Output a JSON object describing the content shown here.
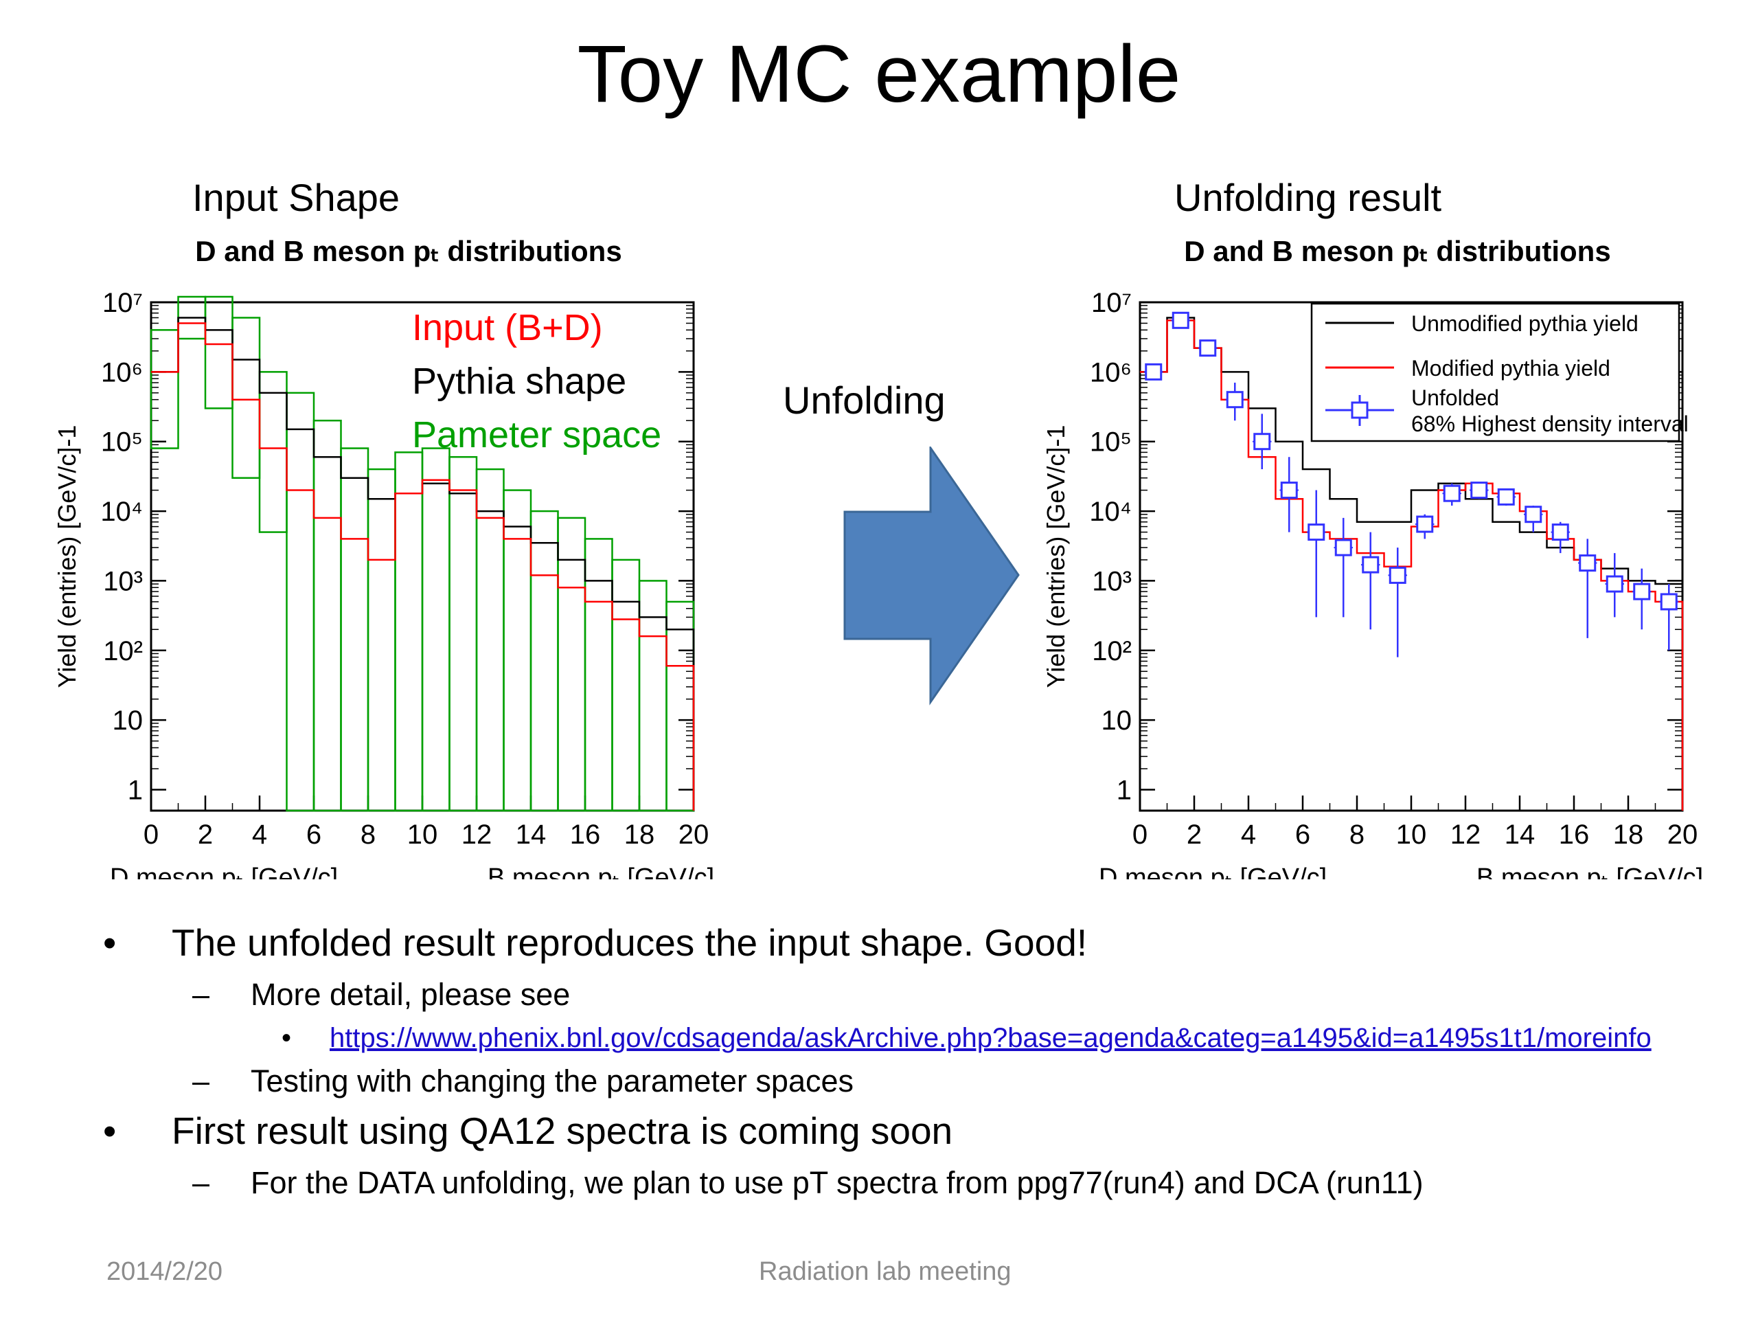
{
  "slide": {
    "title": "Toy MC example",
    "left_caption": "Input Shape",
    "right_caption": "Unfolding result",
    "arrow_label": "Unfolding",
    "arrow_color": "#4f81bd"
  },
  "bullets": [
    {
      "mark": "•",
      "text": "The unfolded result reproduces the input shape. Good!",
      "sub": [
        {
          "mark": "–",
          "text": "More detail, please see",
          "link_mark": "•",
          "link": "https://www.phenix.bnl.gov/cdsagenda/askArchive.php?base=agenda&categ=a1495&id=a1495s1t1/moreinfo"
        },
        {
          "mark": "–",
          "text": "Testing with changing the parameter spaces"
        }
      ]
    },
    {
      "mark": "•",
      "text": "First result using QA12 spectra is coming soon",
      "sub": [
        {
          "mark": "–",
          "text": "For the DATA unfolding, we plan to use pT spectra from ppg77(run4) and DCA (run11)"
        }
      ]
    }
  ],
  "footer": {
    "date": "2014/2/20",
    "center": "Radiation lab meeting"
  },
  "chart_data": [
    {
      "type": "histogram",
      "title": "D and B meson pT distributions",
      "ylabel": "Yield (entries) [GeV/c]-1",
      "xlabel_left": "D meson pT [GeV/c]",
      "xlabel_right": "B meson pT [GeV/c]",
      "xlim": [
        0,
        20
      ],
      "ylim": [
        0.5,
        10000000
      ],
      "log_y": true,
      "x_ticks": [
        "0",
        "2",
        "4",
        "6",
        "8",
        "10",
        "12",
        "14",
        "16",
        "18",
        "20"
      ],
      "y_ticks": [
        "1",
        "10",
        "10²",
        "10³",
        "10⁴",
        "10⁵",
        "10⁶",
        "10⁷"
      ],
      "bin_edges": [
        0,
        1,
        2,
        3,
        4,
        5,
        6,
        7,
        8,
        9,
        10,
        11,
        12,
        13,
        14,
        15,
        16,
        17,
        18,
        19,
        20
      ],
      "legend": [
        "Input (B+D)",
        "Pythia shape",
        "Pameter space"
      ],
      "legend_colors": [
        "#ff0000",
        "#000000",
        "#00a000"
      ],
      "series": [
        {
          "name": "Input (B+D)",
          "color": "#ff0000",
          "values": [
            1000000,
            5000000,
            2500000,
            400000,
            80000,
            20000,
            8000,
            4000,
            2000,
            18000,
            28000,
            20000,
            8000,
            4000,
            1200,
            800,
            500,
            280,
            160,
            60
          ]
        },
        {
          "name": "Pythia shape",
          "color": "#000000",
          "values": [
            1000000,
            6000000,
            4000000,
            1500000,
            500000,
            150000,
            60000,
            30000,
            15000,
            18000,
            25000,
            18000,
            10000,
            6000,
            3500,
            2000,
            1000,
            500,
            300,
            200
          ]
        },
        {
          "name": "Pameter space",
          "color": "#00a000",
          "upper": [
            4000000,
            12000000,
            12000000,
            6000000,
            1000000,
            500000,
            200000,
            80000,
            40000,
            70000,
            80000,
            60000,
            40000,
            20000,
            10000,
            8000,
            4000,
            2000,
            1000,
            500
          ],
          "lower": [
            80000,
            3000000,
            300000,
            30000,
            5000,
            0.5,
            0.5,
            0.5,
            0.5,
            0.5,
            0.5,
            0.5,
            0.5,
            0.5,
            0.5,
            0.5,
            0.5,
            0.5,
            0.5,
            0.5
          ]
        }
      ]
    },
    {
      "type": "histogram",
      "title": "D and B meson pT distributions",
      "ylabel": "Yield (entries) [GeV/c]-1",
      "xlabel_left": "D meson pT [GeV/c]",
      "xlabel_right": "B meson pT [GeV/c]",
      "xlim": [
        0,
        20
      ],
      "ylim": [
        0.5,
        10000000
      ],
      "log_y": true,
      "x_ticks": [
        "0",
        "2",
        "4",
        "6",
        "8",
        "10",
        "12",
        "14",
        "16",
        "18",
        "20"
      ],
      "y_ticks": [
        "1",
        "10",
        "10²",
        "10³",
        "10⁴",
        "10⁵",
        "10⁶",
        "10⁷"
      ],
      "bin_edges": [
        0,
        1,
        2,
        3,
        4,
        5,
        6,
        7,
        8,
        9,
        10,
        11,
        12,
        13,
        14,
        15,
        16,
        17,
        18,
        19,
        20
      ],
      "legend": [
        "Unmodified pythia yield",
        "Modified pythia yield",
        "Unfolded",
        "68% Highest density interval"
      ],
      "series": [
        {
          "name": "Unmodified pythia yield",
          "color": "#000000",
          "values": [
            1000000,
            6000000,
            2200000,
            1000000,
            300000,
            100000,
            40000,
            15000,
            7000,
            7000,
            20000,
            25000,
            15000,
            7000,
            5000,
            3000,
            2000,
            1500,
            1000,
            900
          ]
        },
        {
          "name": "Modified pythia yield",
          "color": "#ff0000",
          "values": [
            1000000,
            5500000,
            2200000,
            400000,
            60000,
            15000,
            5000,
            4000,
            2500,
            1600,
            6000,
            20000,
            25000,
            18000,
            10000,
            4000,
            2000,
            1000,
            700,
            500
          ]
        },
        {
          "name": "Unfolded",
          "color": "#3333ff",
          "values": [
            1000000,
            5500000,
            2200000,
            400000,
            100000,
            20000,
            5000,
            3000,
            1700,
            1200,
            6500,
            18000,
            20000,
            16000,
            9000,
            5000,
            1800,
            900,
            700,
            500
          ],
          "err_low": [
            800000,
            4500000,
            1800000,
            200000,
            40000,
            5000,
            300,
            300,
            200,
            80,
            4000,
            12000,
            15000,
            12000,
            5000,
            2500,
            150,
            300,
            200,
            100
          ],
          "err_high": [
            1200000,
            6500000,
            2600000,
            700000,
            250000,
            60000,
            20000,
            8000,
            5000,
            3000,
            9000,
            25000,
            26000,
            21000,
            12000,
            7000,
            4000,
            2500,
            1500,
            900
          ]
        }
      ]
    }
  ]
}
